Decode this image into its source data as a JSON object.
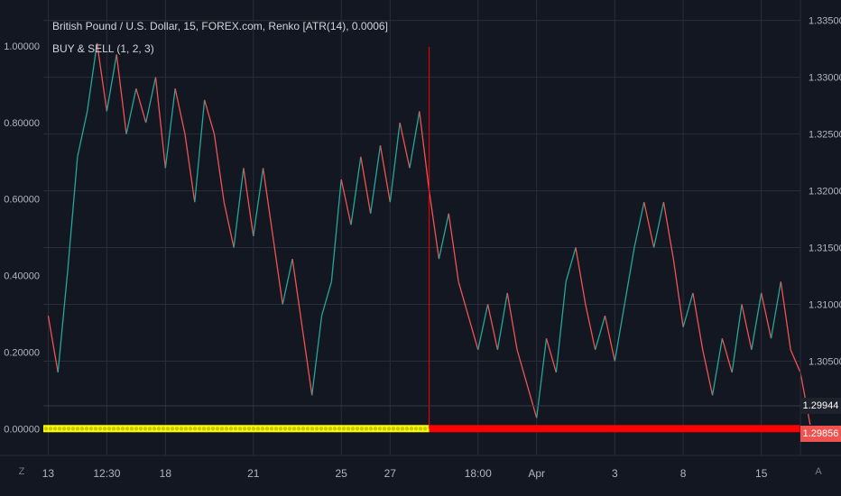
{
  "header": {
    "symbol_title": "British Pound / U.S. Dollar, 15, FOREX.com, Renko [ATR(14), 0.0006]",
    "indicator_label": "BUY & SELL (1, 2, 3)"
  },
  "price_badges": {
    "last_price": "1.29944",
    "indicator_price": "1.29856",
    "last_color": "#1e222d",
    "indicator_color": "#ef5350"
  },
  "colors": {
    "background": "#131722",
    "up": "#26a69a",
    "down": "#ef5350",
    "signal_buy": "#ffff00",
    "signal_sell": "#ff0000",
    "grid": "#2a2e39"
  },
  "icons": {
    "zoom": "Z",
    "auto": "A"
  },
  "chart_data": {
    "type": "line",
    "style": "renko-line",
    "y_left": {
      "ticks": [
        "1.00000",
        "0.80000",
        "0.60000",
        "0.40000",
        "0.20000",
        "0.00000"
      ],
      "tick_values": [
        1.0,
        0.8,
        0.6,
        0.4,
        0.2,
        0.0
      ],
      "range": [
        -0.07,
        1.12
      ]
    },
    "y_right": {
      "ticks": [
        "1.33500",
        "1.33000",
        "1.32500",
        "1.32000",
        "1.31500",
        "1.31000",
        "1.30500"
      ],
      "tick_values": [
        1.335,
        1.33,
        1.325,
        1.32,
        1.315,
        1.31,
        1.305
      ],
      "range": [
        1.2967,
        1.3368
      ]
    },
    "x_ticks": [
      "13",
      "12:30",
      "18",
      "21",
      "25",
      "27",
      "18:00",
      "Apr",
      "3",
      "8",
      "15"
    ],
    "x_tick_index": [
      0,
      6,
      12,
      21,
      30,
      35,
      44,
      50,
      58,
      65,
      73
    ],
    "x_range": [
      -0.5,
      77
    ],
    "grid": true,
    "series": [
      {
        "values": [
          1.309,
          1.304,
          1.313,
          1.323,
          1.327,
          1.333,
          1.327,
          1.332,
          1.325,
          1.329,
          1.326,
          1.33,
          1.322,
          1.329,
          1.325,
          1.319,
          1.328,
          1.325,
          1.319,
          1.315,
          1.322,
          1.316,
          1.322,
          1.316,
          1.31,
          1.314,
          1.308,
          1.302,
          1.309,
          1.312,
          1.321,
          1.317,
          1.323,
          1.318,
          1.324,
          1.319,
          1.326,
          1.322,
          1.327,
          1.32,
          1.314,
          1.318,
          1.312,
          1.309,
          1.306,
          1.31,
          1.306,
          1.311,
          1.306,
          1.303,
          1.3,
          1.307,
          1.304,
          1.312,
          1.315,
          1.31,
          1.306,
          1.309,
          1.305,
          1.31,
          1.315,
          1.319,
          1.315,
          1.319,
          1.314,
          1.308,
          1.311,
          1.306,
          1.302,
          1.307,
          1.304,
          1.31,
          1.306,
          1.311,
          1.307,
          1.312,
          1.306,
          1.304,
          1.2994
        ]
      }
    ],
    "signal_band": {
      "value": 0.0,
      "buy_until_index": 39
    },
    "cursor_line_index": 39
  }
}
